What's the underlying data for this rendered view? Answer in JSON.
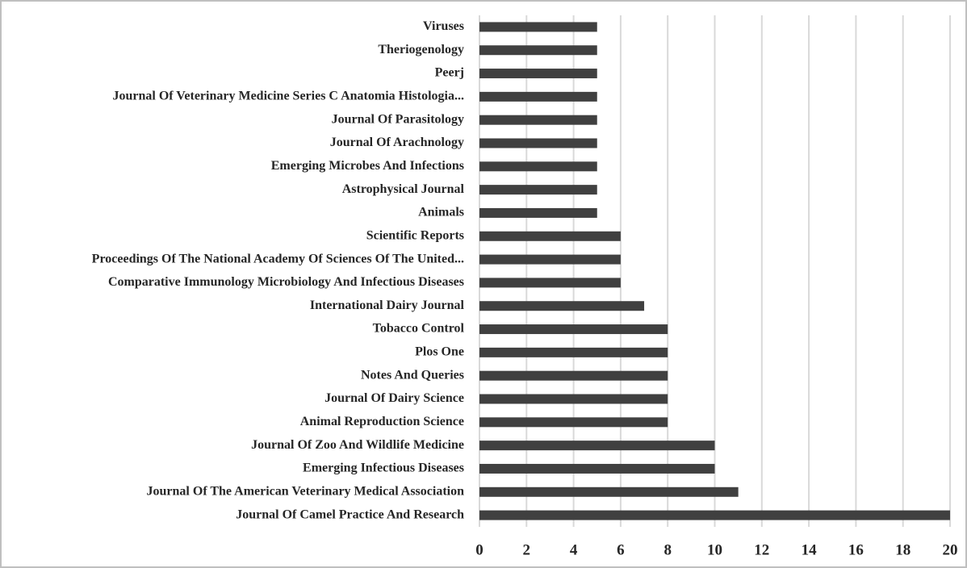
{
  "chart_data": {
    "type": "barh",
    "categories": [
      "Viruses",
      "Theriogenology",
      "Peerj",
      "Journal Of Veterinary Medicine Series C Anatomia Histologia...",
      "Journal Of Parasitology",
      "Journal Of Arachnology",
      "Emerging Microbes And Infections",
      "Astrophysical Journal",
      "Animals",
      "Scientific Reports",
      "Proceedings Of The National Academy Of Sciences Of The United...",
      "Comparative Immunology Microbiology And Infectious Diseases",
      "International Dairy Journal",
      "Tobacco Control",
      "Plos One",
      "Notes And Queries",
      "Journal Of Dairy Science",
      "Animal Reproduction Science",
      "Journal Of Zoo And Wildlife Medicine",
      "Emerging Infectious Diseases",
      "Journal Of The American Veterinary Medical Association",
      "Journal Of Camel Practice And Research"
    ],
    "values": [
      5,
      5,
      5,
      5,
      5,
      5,
      5,
      5,
      5,
      6,
      6,
      6,
      7,
      8,
      8,
      8,
      8,
      8,
      10,
      10,
      11,
      20
    ],
    "color": "#404040",
    "xlim": [
      0,
      20
    ],
    "xticks": [
      0,
      2,
      4,
      6,
      8,
      10,
      12,
      14,
      16,
      18,
      20
    ],
    "grid": true
  }
}
